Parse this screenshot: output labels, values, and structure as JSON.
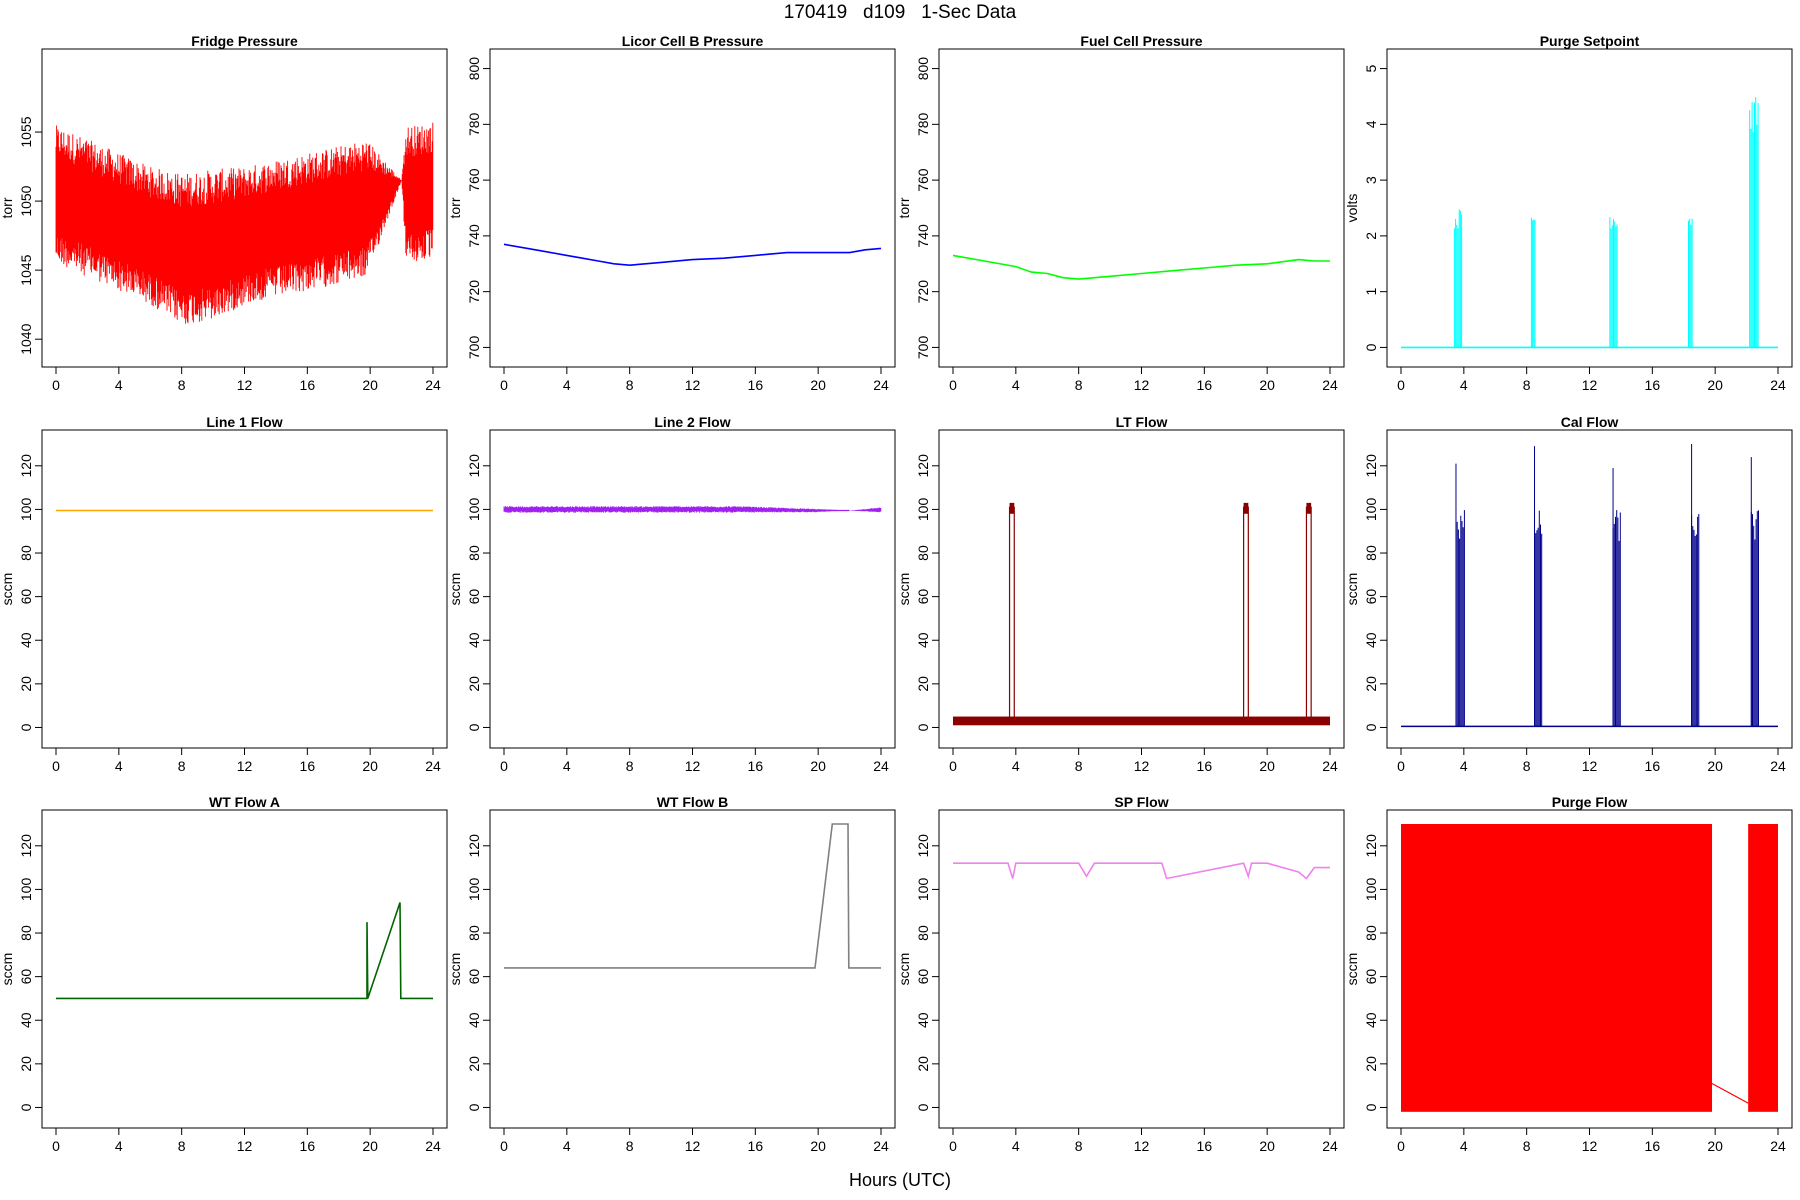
{
  "header": {
    "title": "170419   d109   1-Sec Data"
  },
  "footer": {
    "xlabel": "Hours (UTC)"
  },
  "chart_data": [
    {
      "type": "line",
      "title": "Fridge Pressure",
      "xlabel": "",
      "ylabel": "torr",
      "xlim": [
        0,
        24
      ],
      "ylim": [
        1039,
        1060
      ],
      "yticks": [
        1040,
        1045,
        1050,
        1055
      ],
      "xticks": [
        0,
        4,
        8,
        12,
        16,
        20,
        24
      ],
      "color": "#ff0000",
      "pattern": "noise_band",
      "series": [
        {
          "x": [
            0,
            2,
            4,
            6,
            8,
            10,
            12,
            14,
            16,
            18,
            19.8,
            22,
            22.3,
            23,
            24
          ],
          "y": [
            1050.5,
            1049.5,
            1048.5,
            1047.5,
            1046.5,
            1046.8,
            1047.5,
            1048,
            1048.5,
            1049,
            1049.5,
            1051.5,
            1050.5,
            1050.5,
            1050.8
          ],
          "spread": [
            5,
            5,
            5,
            5,
            5.5,
            5.5,
            5,
            5,
            5,
            5,
            5,
            0,
            5,
            5,
            5
          ]
        }
      ]
    },
    {
      "type": "line",
      "title": "Licor Cell B Pressure",
      "xlabel": "",
      "ylabel": "torr",
      "xlim": [
        0,
        24
      ],
      "ylim": [
        698,
        802
      ],
      "yticks": [
        700,
        720,
        740,
        760,
        780,
        800
      ],
      "xticks": [
        0,
        4,
        8,
        12,
        16,
        20,
        24
      ],
      "color": "#0000ff",
      "pattern": "line",
      "series": [
        {
          "x": [
            0,
            2,
            4,
            5,
            6,
            7,
            8,
            9,
            10,
            12,
            14,
            16,
            18,
            20,
            22,
            23,
            24
          ],
          "y": [
            737,
            735,
            733,
            732,
            731,
            730,
            729.5,
            730,
            730.5,
            731.5,
            732,
            733,
            734,
            734,
            734,
            735,
            735.5
          ]
        }
      ]
    },
    {
      "type": "line",
      "title": "Fuel Cell Pressure",
      "xlabel": "",
      "ylabel": "torr",
      "xlim": [
        0,
        24
      ],
      "ylim": [
        698,
        802
      ],
      "yticks": [
        700,
        720,
        740,
        760,
        780,
        800
      ],
      "xticks": [
        0,
        4,
        8,
        12,
        16,
        20,
        24
      ],
      "color": "#00ff00",
      "pattern": "line",
      "series": [
        {
          "x": [
            0,
            2,
            4,
            5,
            6,
            7,
            8,
            9,
            10,
            12,
            14,
            16,
            18,
            20,
            22,
            23,
            24
          ],
          "y": [
            733,
            731,
            729,
            727,
            726.5,
            725,
            724.5,
            725,
            725.5,
            726.5,
            727.5,
            728.5,
            729.5,
            730,
            731.5,
            731,
            731
          ]
        }
      ]
    },
    {
      "type": "line",
      "title": "Purge Setpoint",
      "xlabel": "",
      "ylabel": "volts",
      "xlim": [
        0,
        24
      ],
      "ylim": [
        -0.1,
        5.1
      ],
      "yticks": [
        0,
        1,
        2,
        3,
        4,
        5
      ],
      "xticks": [
        0,
        4,
        8,
        12,
        16,
        20,
        24
      ],
      "color": "#00ffff",
      "pattern": "pulses",
      "baseline": 0,
      "pulses": [
        [
          3.4,
          3.9,
          2.5
        ],
        [
          8.3,
          8.6,
          2.5
        ],
        [
          13.3,
          13.8,
          2.5
        ],
        [
          18.3,
          18.6,
          2.5
        ],
        [
          22.2,
          22.8,
          4.5
        ]
      ]
    },
    {
      "type": "line",
      "title": "Line 1 Flow",
      "xlabel": "",
      "ylabel": "sccm",
      "xlim": [
        0,
        24
      ],
      "ylim": [
        -3,
        130
      ],
      "yticks": [
        0,
        20,
        40,
        60,
        80,
        100,
        120
      ],
      "xticks": [
        0,
        4,
        8,
        12,
        16,
        20,
        24
      ],
      "color": "#ffa500",
      "pattern": "line",
      "series": [
        {
          "x": [
            0,
            24
          ],
          "y": [
            99.5,
            99.5
          ]
        }
      ]
    },
    {
      "type": "line",
      "title": "Line 2 Flow",
      "xlabel": "",
      "ylabel": "sccm",
      "xlim": [
        0,
        24
      ],
      "ylim": [
        -3,
        130
      ],
      "yticks": [
        0,
        20,
        40,
        60,
        80,
        100,
        120
      ],
      "xticks": [
        0,
        4,
        8,
        12,
        16,
        20,
        24
      ],
      "color": "#a020f0",
      "pattern": "noise_band",
      "series": [
        {
          "x": [
            0,
            15,
            19.8,
            22,
            24
          ],
          "y": [
            100,
            100,
            99.5,
            99.5,
            99.8
          ],
          "spread": [
            1.5,
            1.5,
            0.8,
            0,
            1.2
          ]
        }
      ]
    },
    {
      "type": "line",
      "title": "LT Flow",
      "xlabel": "",
      "ylabel": "sccm",
      "xlim": [
        0,
        24
      ],
      "ylim": [
        -3,
        130
      ],
      "yticks": [
        0,
        20,
        40,
        60,
        80,
        100,
        120
      ],
      "xticks": [
        0,
        4,
        8,
        12,
        16,
        20,
        24
      ],
      "color": "#8b0000",
      "pattern": "pulses",
      "baseline": 2,
      "band": 3,
      "pulses": [
        [
          3.6,
          3.9,
          101
        ],
        [
          18.5,
          18.8,
          101
        ],
        [
          22.5,
          22.8,
          101
        ]
      ]
    },
    {
      "type": "line",
      "title": "Cal Flow",
      "xlabel": "",
      "ylabel": "sccm",
      "xlim": [
        0,
        24
      ],
      "ylim": [
        -3,
        130
      ],
      "yticks": [
        0,
        20,
        40,
        60,
        80,
        100,
        120
      ],
      "xticks": [
        0,
        4,
        8,
        12,
        16,
        20,
        24
      ],
      "color": "#00008b",
      "pattern": "pulses",
      "baseline": 0.5,
      "spikes": [
        121,
        129,
        119,
        130,
        124
      ],
      "pulses": [
        [
          3.5,
          4.1,
          100
        ],
        [
          8.5,
          9.0,
          100
        ],
        [
          13.5,
          14.0,
          100
        ],
        [
          18.5,
          19.0,
          100
        ],
        [
          22.3,
          22.8,
          100
        ]
      ]
    },
    {
      "type": "line",
      "title": "WT Flow A",
      "xlabel": "",
      "ylabel": "sccm",
      "xlim": [
        0,
        24
      ],
      "ylim": [
        -3,
        130
      ],
      "yticks": [
        0,
        20,
        40,
        60,
        80,
        100,
        120
      ],
      "xticks": [
        0,
        4,
        8,
        12,
        16,
        20,
        24
      ],
      "color": "#006400",
      "pattern": "line",
      "series": [
        {
          "x": [
            0,
            19.8,
            19.8,
            19.85,
            21.9,
            21.95,
            24
          ],
          "y": [
            50,
            50,
            85,
            50,
            94,
            50,
            50
          ]
        }
      ]
    },
    {
      "type": "line",
      "title": "WT Flow B",
      "xlabel": "",
      "ylabel": "sccm",
      "xlim": [
        0,
        24
      ],
      "ylim": [
        -3,
        130
      ],
      "yticks": [
        0,
        20,
        40,
        60,
        80,
        100,
        120
      ],
      "xticks": [
        0,
        4,
        8,
        12,
        16,
        20,
        24
      ],
      "color": "#808080",
      "pattern": "line",
      "series": [
        {
          "x": [
            0,
            19.8,
            20.9,
            21.9,
            21.95,
            24
          ],
          "y": [
            64,
            64,
            130,
            130,
            64,
            64
          ]
        }
      ]
    },
    {
      "type": "line",
      "title": "SP Flow",
      "xlabel": "",
      "ylabel": "sccm",
      "xlim": [
        0,
        24
      ],
      "ylim": [
        -3,
        130
      ],
      "yticks": [
        0,
        20,
        40,
        60,
        80,
        100,
        120
      ],
      "xticks": [
        0,
        4,
        8,
        12,
        16,
        20,
        24
      ],
      "color": "#ee82ee",
      "pattern": "line",
      "series": [
        {
          "x": [
            0,
            3.5,
            3.8,
            4,
            8,
            8.5,
            9,
            13.3,
            13.6,
            18.5,
            18.8,
            19,
            20,
            22,
            22.5,
            23,
            24
          ],
          "y": [
            112,
            112,
            105,
            112,
            112,
            106,
            112,
            112,
            105,
            112,
            106,
            112,
            112,
            108,
            105,
            110,
            110
          ]
        }
      ]
    },
    {
      "type": "line",
      "title": "Purge Flow",
      "xlabel": "",
      "ylabel": "sccm",
      "xlim": [
        0,
        24
      ],
      "ylim": [
        -3,
        130
      ],
      "yticks": [
        0,
        20,
        40,
        60,
        80,
        100,
        120
      ],
      "xticks": [
        0,
        4,
        8,
        12,
        16,
        20,
        24
      ],
      "color": "#ff0000",
      "pattern": "fill_block",
      "blocks": [
        [
          0,
          19.8,
          -2,
          130
        ],
        [
          22.1,
          24,
          -2,
          130
        ]
      ],
      "link": {
        "x": [
          19.8,
          22.1
        ],
        "y": [
          11,
          2
        ]
      }
    }
  ]
}
